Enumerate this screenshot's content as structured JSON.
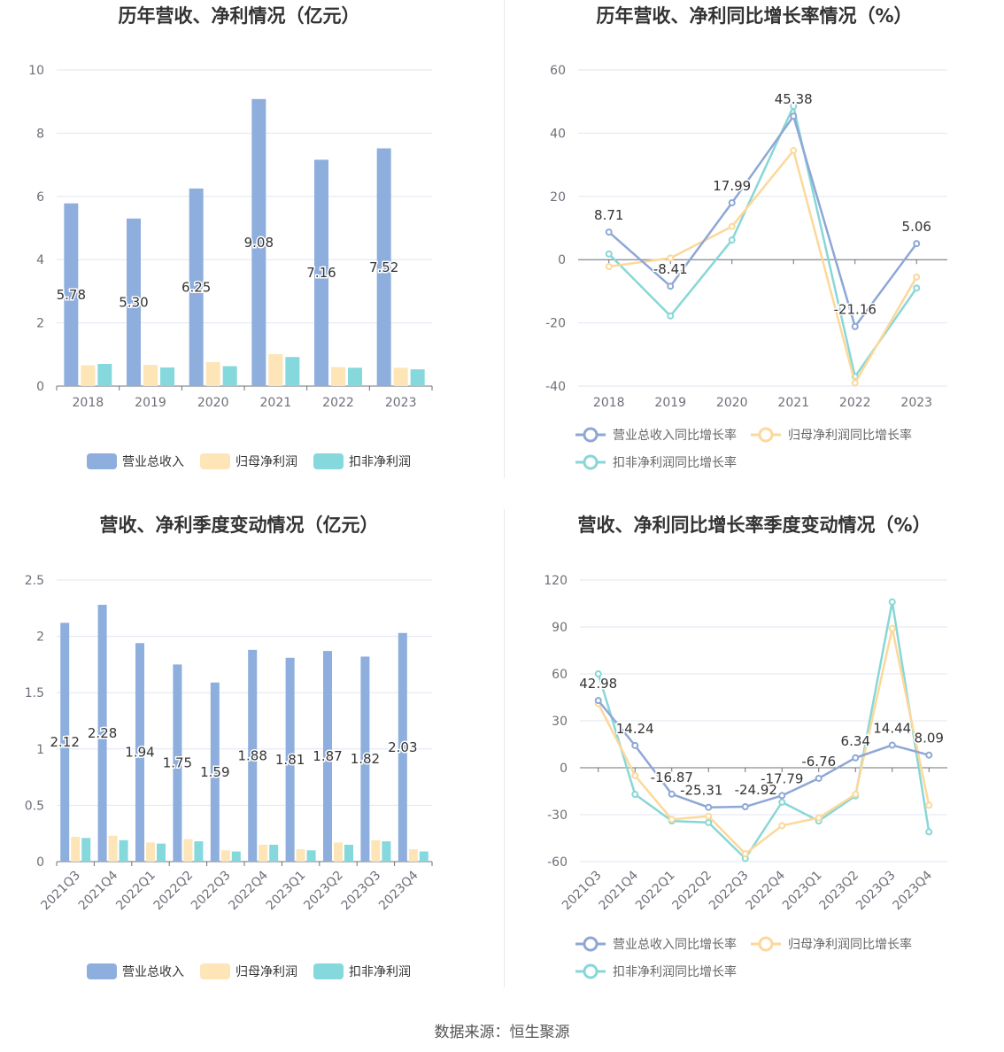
{
  "source": "数据来源：恒生聚源",
  "colors": {
    "revenue": "#8eaedd",
    "net_profit": "#fde5b7",
    "deducted_profit": "#85d8dc",
    "revenue_line": "#8ea7d6",
    "net_line": "#fcd89a",
    "deducted_line": "#88d7d6"
  },
  "chart_data": [
    {
      "id": "annual-bar",
      "type": "bar",
      "title": "历年营收、净利情况（亿元）",
      "categories": [
        "2018",
        "2019",
        "2020",
        "2021",
        "2022",
        "2023"
      ],
      "ylim": [
        0,
        10
      ],
      "yticks": [
        0,
        2,
        4,
        6,
        8,
        10
      ],
      "series": [
        {
          "name": "营业总收入",
          "values": [
            5.78,
            5.3,
            6.25,
            9.08,
            7.16,
            7.52
          ],
          "labels": [
            "5.78",
            "5.30",
            "6.25",
            "9.08",
            "7.16",
            "7.52"
          ]
        },
        {
          "name": "归母净利润",
          "values": [
            0.66,
            0.67,
            0.76,
            1.01,
            0.6,
            0.58
          ]
        },
        {
          "name": "扣非净利润",
          "values": [
            0.7,
            0.59,
            0.63,
            0.92,
            0.58,
            0.53
          ]
        }
      ],
      "legend": "bottom-center"
    },
    {
      "id": "annual-line",
      "type": "line",
      "title": "历年营收、净利同比增长率情况（%）",
      "categories": [
        "2018",
        "2019",
        "2020",
        "2021",
        "2022",
        "2023"
      ],
      "ylim": [
        -40,
        60
      ],
      "yticks": [
        -40,
        -20,
        0,
        20,
        40,
        60
      ],
      "series": [
        {
          "name": "营业总收入同比增长率",
          "values": [
            8.71,
            -8.41,
            17.99,
            45.38,
            -21.16,
            5.06
          ],
          "labels": [
            "8.71",
            "-8.41",
            "17.99",
            "45.38",
            "-21.16",
            "5.06"
          ]
        },
        {
          "name": "归母净利润同比增长率",
          "values": [
            -2.2,
            0.5,
            10.5,
            34.5,
            -39.0,
            -5.5
          ]
        },
        {
          "name": "扣非净利润同比增长率",
          "values": [
            1.8,
            -17.8,
            6.2,
            48.5,
            -37.0,
            -9.0
          ]
        }
      ],
      "legend": "bottom-center"
    },
    {
      "id": "quarter-bar",
      "type": "bar",
      "title": "营收、净利季度变动情况（亿元）",
      "categories": [
        "2021Q3",
        "2021Q4",
        "2022Q1",
        "2022Q2",
        "2022Q3",
        "2022Q4",
        "2023Q1",
        "2023Q2",
        "2023Q3",
        "2023Q4"
      ],
      "ylim": [
        0,
        2.5
      ],
      "yticks": [
        "0",
        "0.5",
        "1",
        "1.5",
        "2",
        "2.5"
      ],
      "series": [
        {
          "name": "营业总收入",
          "values": [
            2.12,
            2.28,
            1.94,
            1.75,
            1.59,
            1.88,
            1.81,
            1.87,
            1.82,
            2.03
          ],
          "labels": [
            "2.12",
            "2.28",
            "1.94",
            "1.75",
            "1.59",
            "1.88",
            "1.81",
            "1.87",
            "1.82",
            "2.03"
          ]
        },
        {
          "name": "归母净利润",
          "values": [
            0.22,
            0.23,
            0.17,
            0.2,
            0.1,
            0.15,
            0.11,
            0.17,
            0.19,
            0.11
          ]
        },
        {
          "name": "扣非净利润",
          "values": [
            0.21,
            0.19,
            0.16,
            0.18,
            0.09,
            0.15,
            0.1,
            0.15,
            0.18,
            0.09
          ]
        }
      ],
      "legend": "bottom-center"
    },
    {
      "id": "quarter-line",
      "type": "line",
      "title": "营收、净利同比增长率季度变动情况（%）",
      "categories": [
        "2021Q3",
        "2021Q4",
        "2022Q1",
        "2022Q2",
        "2022Q3",
        "2022Q4",
        "2023Q1",
        "2023Q2",
        "2023Q3",
        "2023Q4"
      ],
      "ylim": [
        -60,
        120
      ],
      "yticks": [
        -60,
        -30,
        0,
        30,
        60,
        90,
        120
      ],
      "series": [
        {
          "name": "营业总收入同比增长率",
          "values": [
            42.98,
            14.24,
            -16.87,
            -25.31,
            -24.92,
            -17.79,
            -6.76,
            6.34,
            14.44,
            8.09
          ],
          "labels": [
            "42.98",
            "14.24",
            "-16.87",
            "-25.31",
            "-24.92",
            "-17.79",
            "-6.76",
            "6.34",
            "14.44",
            "8.09"
          ]
        },
        {
          "name": "归母净利润同比增长率",
          "values": [
            41,
            -5,
            -33,
            -31,
            -55,
            -37,
            -32,
            -17,
            89,
            -24
          ]
        },
        {
          "name": "扣非净利润同比增长率",
          "values": [
            60,
            -17,
            -34,
            -35,
            -58,
            -22,
            -34,
            -18,
            106,
            -41
          ]
        }
      ],
      "legend": "bottom-center"
    }
  ]
}
